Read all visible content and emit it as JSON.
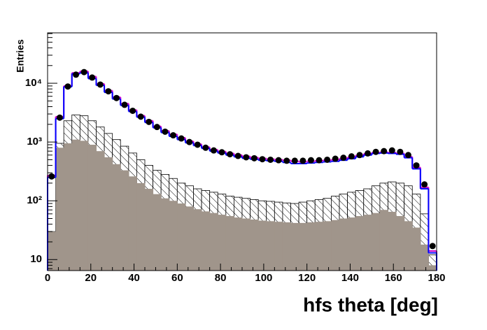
{
  "chart_data": {
    "type": "histogram",
    "xlabel": "hfs theta [deg]",
    "ylabel": "Entries",
    "bins": [
      0,
      3.75,
      7.5,
      11.25,
      15,
      18.75,
      22.5,
      26.25,
      30,
      33.75,
      37.5,
      41.25,
      45,
      48.75,
      52.5,
      56.25,
      60,
      63.75,
      67.5,
      71.25,
      75,
      78.75,
      82.5,
      86.25,
      90,
      93.75,
      97.5,
      101.25,
      105,
      108.75,
      112.5,
      116.25,
      120,
      123.75,
      127.5,
      131.25,
      135,
      138.75,
      142.5,
      146.25,
      150,
      153.75,
      157.5,
      161.25,
      165,
      168.75,
      172.5,
      176.25,
      180
    ],
    "series": [
      {
        "style": "hatched",
        "color": "#000000",
        "values": [
          30,
          950,
          2300,
          2900,
          2800,
          2300,
          1800,
          1400,
          1100,
          850,
          650,
          500,
          400,
          330,
          280,
          240,
          200,
          180,
          160,
          150,
          140,
          130,
          120,
          115,
          110,
          105,
          100,
          98,
          95,
          92,
          90,
          95,
          100,
          105,
          110,
          120,
          130,
          140,
          150,
          160,
          180,
          200,
          210,
          200,
          180,
          130,
          60,
          12
        ]
      },
      {
        "style": "filled",
        "color": "#a0958b",
        "values": [
          30,
          800,
          950,
          1100,
          1050,
          900,
          700,
          550,
          420,
          330,
          260,
          200,
          160,
          130,
          110,
          100,
          90,
          80,
          72,
          66,
          62,
          58,
          55,
          52,
          50,
          48,
          46,
          45,
          44,
          43,
          42,
          42,
          43,
          44,
          45,
          47,
          50,
          52,
          55,
          58,
          62,
          70,
          65,
          55,
          45,
          35,
          18,
          8
        ]
      },
      {
        "style": "step",
        "color": "#cc00cc",
        "values": [
          270,
          2700,
          9000,
          15000,
          16000,
          13000,
          9800,
          7500,
          5800,
          4500,
          3500,
          2800,
          2300,
          1850,
          1550,
          1350,
          1180,
          1030,
          920,
          820,
          740,
          690,
          640,
          600,
          570,
          545,
          525,
          510,
          500,
          490,
          470,
          460,
          470,
          480,
          490,
          500,
          520,
          550,
          590,
          630,
          660,
          670,
          660,
          640,
          560,
          370,
          170,
          14
        ]
      },
      {
        "style": "step",
        "color": "#0000ff",
        "values": [
          250,
          2500,
          8700,
          14500,
          15000,
          12000,
          9200,
          7000,
          5400,
          4200,
          3300,
          2650,
          2150,
          1750,
          1450,
          1250,
          1100,
          970,
          870,
          780,
          700,
          650,
          600,
          560,
          530,
          510,
          490,
          480,
          470,
          450,
          430,
          430,
          440,
          450,
          460,
          470,
          490,
          520,
          560,
          600,
          640,
          650,
          640,
          620,
          540,
          350,
          160,
          13
        ]
      },
      {
        "style": "points",
        "color": "#000000",
        "values": [
          260,
          2600,
          8800,
          14000,
          15500,
          12500,
          9500,
          7300,
          5600,
          4300,
          3400,
          2700,
          2200,
          1800,
          1500,
          1300,
          1150,
          1000,
          900,
          800,
          720,
          670,
          620,
          580,
          550,
          530,
          510,
          500,
          490,
          480,
          480,
          480,
          490,
          490,
          500,
          520,
          540,
          570,
          600,
          640,
          680,
          700,
          720,
          680,
          600,
          400,
          190,
          17
        ]
      }
    ],
    "xlim": [
      0,
      180
    ],
    "xticks": [
      0,
      20,
      40,
      60,
      80,
      100,
      120,
      140,
      160,
      180
    ],
    "ylim": [
      6.5,
      72000
    ],
    "log_y": true,
    "yticks": [
      10,
      {
        "value": 100,
        "label": "10²"
      },
      {
        "value": 1000,
        "label": "10³"
      },
      {
        "value": 10000,
        "label": "10⁴"
      }
    ]
  }
}
